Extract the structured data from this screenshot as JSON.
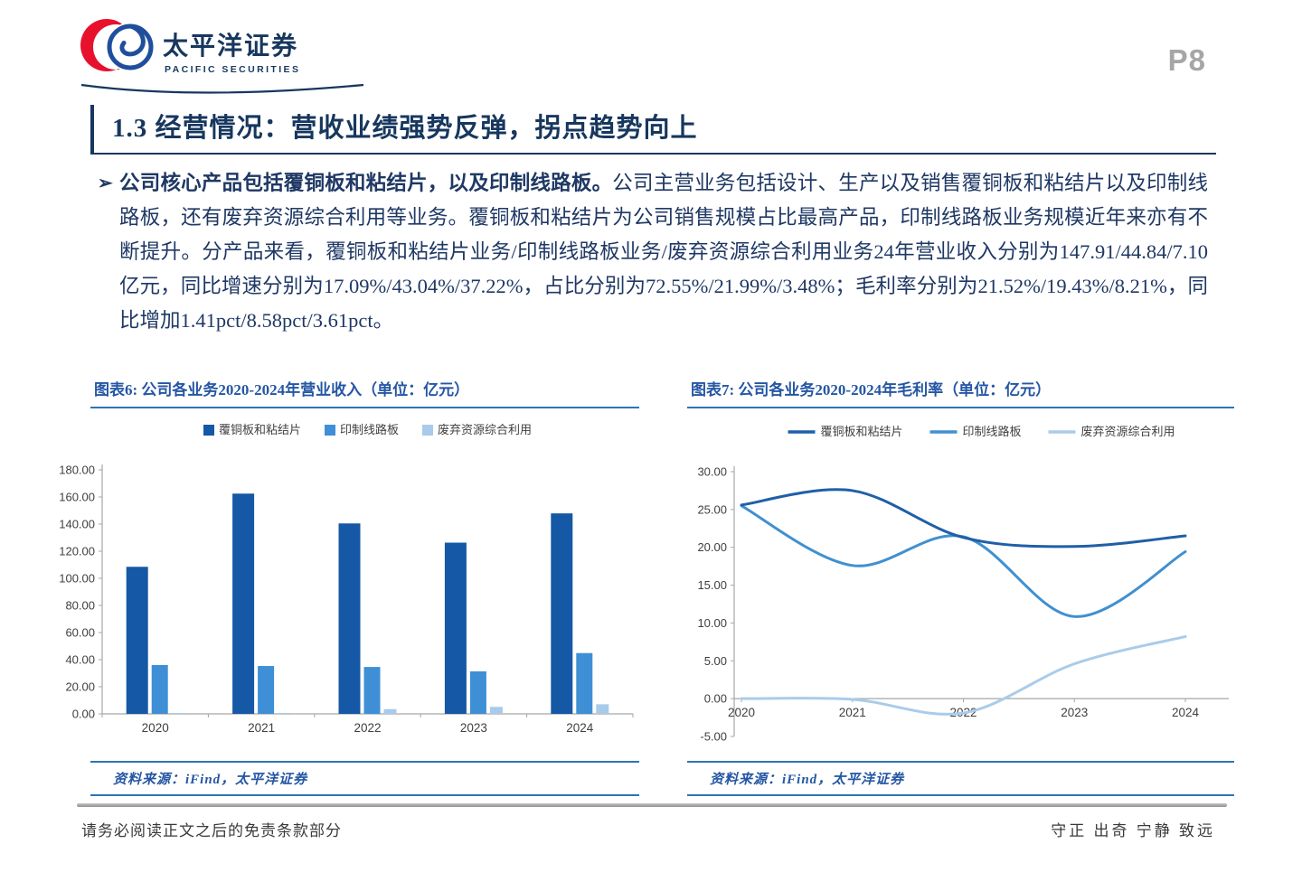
{
  "header": {
    "logo_cn": "太平洋证券",
    "logo_en": "PACIFIC SECURITIES",
    "page_number": "P8"
  },
  "title": "1.3 经营情况：营收业绩强势反弹，拐点趋势向上",
  "body": {
    "bullet": "➢",
    "lead_bold": "公司核心产品包括覆铜板和粘结片，以及印制线路板。",
    "rest": "公司主营业务包括设计、生产以及销售覆铜板和粘结片以及印制线路板，还有废弃资源综合利用等业务。覆铜板和粘结片为公司销售规模占比最高产品，印制线路板业务规模近年来亦有不断提升。分产品来看，覆铜板和粘结片业务/印制线路板业务/废弃资源综合利用业务24年营业收入分别为147.91/44.84/7.10亿元，同比增速分别为17.09%/43.04%/37.22%，占比分别为72.55%/21.99%/3.48%；毛利率分别为21.52%/19.43%/8.21%，同比增加1.41pct/8.58pct/3.61pct。"
  },
  "charts": {
    "left": {
      "caption": "图表6: 公司各业务2020-2024年营业收入（单位：亿元）",
      "source": "资料来源：iFind，太平洋证券"
    },
    "right": {
      "caption": "图表7: 公司各业务2020-2024年毛利率（单位：亿元）",
      "source": "资料来源：iFind，太平洋证券"
    }
  },
  "chart_data": [
    {
      "type": "bar",
      "title": "图表6: 公司各业务2020-2024年营业收入（单位：亿元）",
      "categories": [
        "2020",
        "2021",
        "2022",
        "2023",
        "2024"
      ],
      "series": [
        {
          "name": "覆铜板和粘结片",
          "color": "#1558A5",
          "values": [
            108.5,
            162.5,
            140.5,
            126.32,
            147.91
          ]
        },
        {
          "name": "印制线路板",
          "color": "#3E8FD6",
          "values": [
            36.0,
            35.3,
            34.6,
            31.35,
            44.84
          ]
        },
        {
          "name": "废弃资源综合利用",
          "color": "#A8CBEA",
          "values": [
            0.5,
            0.7,
            3.5,
            5.17,
            7.1
          ]
        }
      ],
      "ylim": [
        0,
        180
      ],
      "ytick_step": 20,
      "legend_position": "top",
      "grid": false,
      "xlabel": "",
      "ylabel": ""
    },
    {
      "type": "line",
      "title": "图表7: 公司各业务2020-2024年毛利率（单位：亿元）",
      "x": [
        "2020",
        "2021",
        "2022",
        "2023",
        "2024"
      ],
      "series": [
        {
          "name": "覆铜板和粘结片",
          "color": "#1F5FA8",
          "values": [
            25.6,
            27.5,
            21.3,
            20.11,
            21.52
          ]
        },
        {
          "name": "印制线路板",
          "color": "#4090D0",
          "values": [
            25.5,
            17.6,
            21.4,
            10.85,
            19.43
          ]
        },
        {
          "name": "废弃资源综合利用",
          "color": "#A9CCEA",
          "values": [
            0.0,
            -0.1,
            -1.9,
            4.6,
            8.21
          ]
        }
      ],
      "ylim": [
        -5,
        30
      ],
      "ytick_step": 5,
      "legend_position": "top",
      "grid": false,
      "smooth": true,
      "xlabel": "",
      "ylabel": ""
    }
  ],
  "footer": {
    "disclaimer": "请务必阅读正文之后的免责条款部分",
    "motto": "守正 出奇 宁静 致远"
  }
}
